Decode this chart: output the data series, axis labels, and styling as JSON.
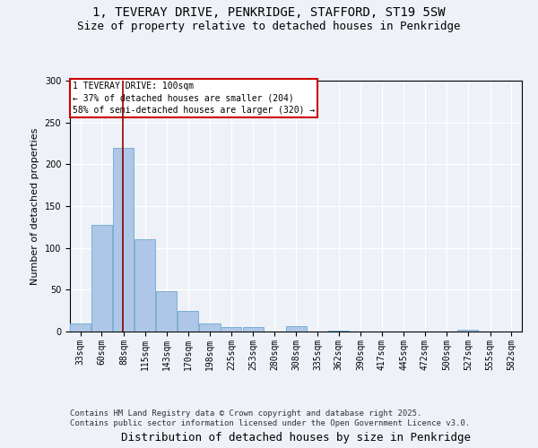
{
  "title1": "1, TEVERAY DRIVE, PENKRIDGE, STAFFORD, ST19 5SW",
  "title2": "Size of property relative to detached houses in Penkridge",
  "xlabel": "Distribution of detached houses by size in Penkridge",
  "ylabel": "Number of detached properties",
  "bar_color": "#aec6e8",
  "bar_edge_color": "#7bafd4",
  "vline_color": "#8b0000",
  "vline_x": 100,
  "annotation_title": "1 TEVERAY DRIVE: 100sqm",
  "annotation_line1": "← 37% of detached houses are smaller (204)",
  "annotation_line2": "58% of semi-detached houses are larger (320) →",
  "annotation_box_color": "#ffffff",
  "annotation_border_color": "#cc0000",
  "bins": [
    33,
    60,
    88,
    115,
    143,
    170,
    198,
    225,
    253,
    280,
    308,
    335,
    362,
    390,
    417,
    445,
    472,
    500,
    527,
    555,
    582
  ],
  "values": [
    10,
    127,
    220,
    110,
    48,
    25,
    10,
    5,
    5,
    0,
    6,
    0,
    1,
    0,
    0,
    0,
    0,
    0,
    2,
    0,
    0
  ],
  "ylim": [
    0,
    300
  ],
  "yticks": [
    0,
    50,
    100,
    150,
    200,
    250,
    300
  ],
  "background_color": "#eef2f8",
  "grid_color": "#ffffff",
  "footer": "Contains HM Land Registry data © Crown copyright and database right 2025.\nContains public sector information licensed under the Open Government Licence v3.0.",
  "title_fontsize": 10,
  "subtitle_fontsize": 9,
  "label_fontsize": 8,
  "tick_fontsize": 7,
  "footer_fontsize": 6.5,
  "ann_fontsize": 7
}
